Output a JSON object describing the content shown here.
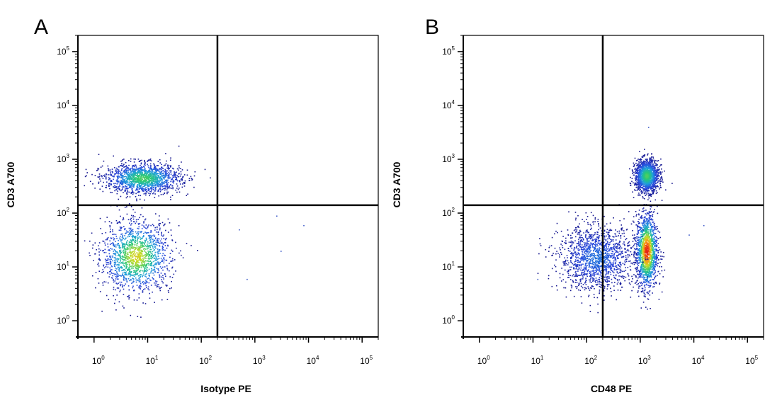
{
  "figure": {
    "panels": [
      "A",
      "B"
    ]
  },
  "chart_data": [
    {
      "type": "scatter",
      "panel_label": "A",
      "xlabel": "Isotype PE",
      "ylabel": "CD3 A700",
      "xscale": "log",
      "yscale": "log",
      "xlim": [
        0.5,
        200000
      ],
      "ylim": [
        0.5,
        200000
      ],
      "xticks": [
        "10^0",
        "10^1",
        "10^2",
        "10^3",
        "10^4",
        "10^5"
      ],
      "yticks": [
        "10^0",
        "10^1",
        "10^2",
        "10^3",
        "10^4",
        "10^5"
      ],
      "gates": {
        "x": 200,
        "y": 140
      },
      "style": "density pseudocolor (blue to green to red)",
      "populations": [
        {
          "description": "CD3 negative, isotype negative",
          "x": 6,
          "y": 16,
          "spread_x_log10": 0.32,
          "spread_y_log10": 0.33,
          "peak_color": "yellow-green"
        },
        {
          "description": "CD3 positive, isotype negative",
          "x": 8,
          "y": 450,
          "spread_x_log10": 0.35,
          "spread_y_log10": 0.14,
          "peak_color": "green"
        }
      ],
      "scattered_points": [
        {
          "x": 500,
          "y": 50
        },
        {
          "x": 3000,
          "y": 20
        },
        {
          "x": 8000,
          "y": 60
        },
        {
          "x": 700,
          "y": 6
        },
        {
          "x": 2500,
          "y": 90
        }
      ]
    },
    {
      "type": "scatter",
      "panel_label": "B",
      "xlabel": "CD48 PE",
      "ylabel": "CD3 A700",
      "xscale": "log",
      "yscale": "log",
      "xlim": [
        0.5,
        200000
      ],
      "ylim": [
        0.5,
        200000
      ],
      "xticks": [
        "10^0",
        "10^1",
        "10^2",
        "10^3",
        "10^4",
        "10^5"
      ],
      "yticks": [
        "10^0",
        "10^1",
        "10^2",
        "10^3",
        "10^4",
        "10^5"
      ],
      "gates": {
        "x": 200,
        "y": 140
      },
      "style": "density pseudocolor (blue to green to red)",
      "populations": [
        {
          "description": "CD3 negative, CD48 positive",
          "x": 1300,
          "y": 20,
          "spread_x_log10": 0.1,
          "spread_y_log10": 0.35,
          "peak_color": "red"
        },
        {
          "description": "CD3 positive, CD48 positive",
          "x": 1300,
          "y": 500,
          "spread_x_log10": 0.11,
          "spread_y_log10": 0.15,
          "peak_color": "green"
        },
        {
          "description": "CD3 negative, CD48 low tail",
          "x": 150,
          "y": 15,
          "spread_x_log10": 0.35,
          "spread_y_log10": 0.3,
          "peak_color": "blue"
        }
      ],
      "scattered_points": [
        {
          "x": 12,
          "y": 6
        },
        {
          "x": 20,
          "y": 25
        },
        {
          "x": 8000,
          "y": 40
        },
        {
          "x": 1400,
          "y": 4000
        },
        {
          "x": 15000,
          "y": 60
        }
      ]
    }
  ]
}
